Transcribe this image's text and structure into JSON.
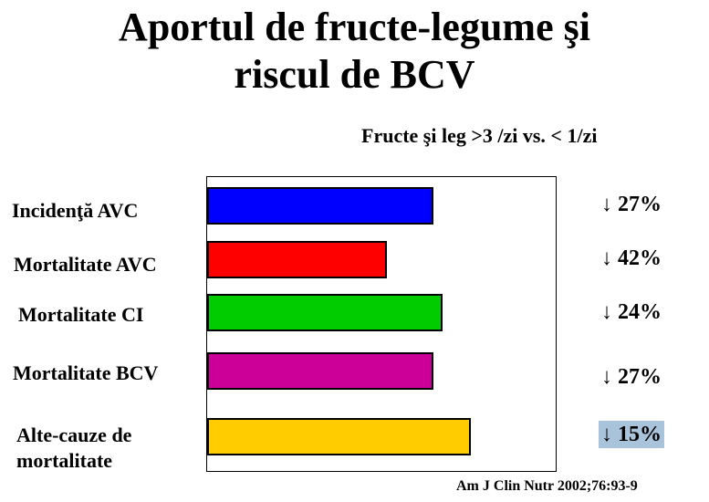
{
  "title_line1": "Aportul de fructe-legume şi",
  "title_line2": "riscul de BCV",
  "subtitle": "Fructe şi leg >3 /zi vs. < 1/zi",
  "source": "Am J Clin Nutr 2002;76:93-9",
  "chart_data": {
    "type": "bar",
    "orientation": "horizontal",
    "grid": false,
    "categories": [
      "Incidenţă AVC",
      "Mortalitate AVC",
      "Mortalitate CI",
      "Mortalitate BCV",
      "Alte-cauze de mortalitate"
    ],
    "values": [
      27,
      42,
      24,
      27,
      15
    ],
    "value_labels": [
      "↓ 27%",
      "↓ 42%",
      "↓ 24%",
      "↓ 27%",
      "↓ 15%"
    ],
    "highlighted_label_index": 4,
    "colors": [
      "#0000ff",
      "#ff0000",
      "#00cc00",
      "#cc0099",
      "#ffcc00"
    ],
    "highlight_color": "#a9c3da"
  }
}
